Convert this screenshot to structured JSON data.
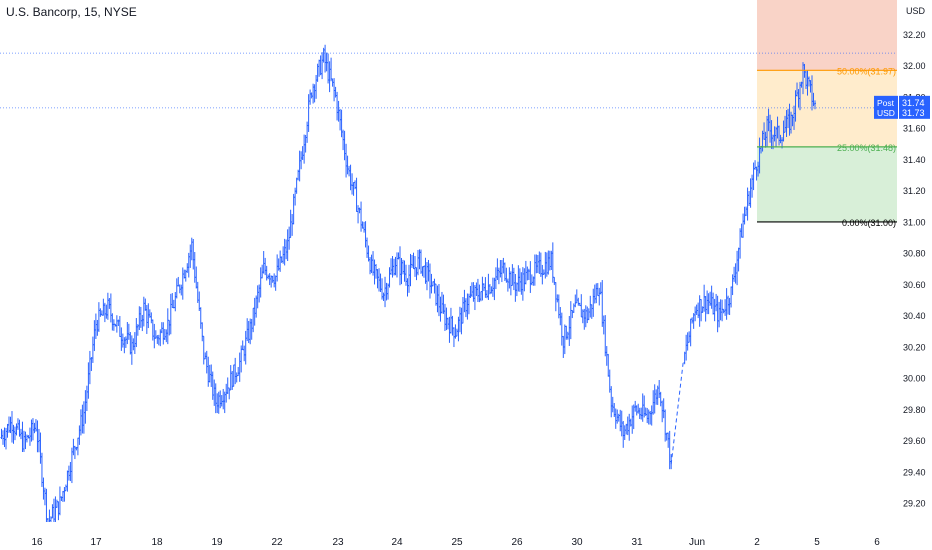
{
  "header": {
    "title": "U.S. Bancorp, 15, NYSE"
  },
  "chart_data": {
    "type": "ohlc",
    "title": "U.S. Bancorp, 15, NYSE",
    "y_axis": {
      "label": "USD",
      "ticks": [
        29.2,
        29.4,
        29.6,
        29.8,
        30.0,
        30.2,
        30.4,
        30.6,
        30.8,
        31.0,
        31.2,
        31.4,
        31.6,
        31.8,
        32.0,
        32.2
      ],
      "tick_labels": [
        "29.20",
        "29.40",
        "29.60",
        "29.80",
        "30.00",
        "30.20",
        "30.40",
        "30.60",
        "30.80",
        "31.00",
        "31.20",
        "31.40",
        "31.60",
        "31.80",
        "32.00",
        "32.20"
      ],
      "range": [
        29.08,
        32.42
      ]
    },
    "x_axis": {
      "labels": [
        "16",
        "17",
        "18",
        "19",
        "22",
        "23",
        "24",
        "25",
        "26",
        "30",
        "31",
        "Jun",
        "2",
        "5",
        "6"
      ]
    },
    "price_path": [
      [
        0,
        29.62
      ],
      [
        1,
        29.72
      ],
      [
        2,
        29.58
      ],
      [
        3,
        29.7
      ],
      [
        4,
        29.08
      ],
      [
        5,
        29.2
      ],
      [
        6,
        29.5
      ],
      [
        7,
        29.78
      ],
      [
        8,
        30.35
      ],
      [
        9,
        30.45
      ],
      [
        10,
        30.3
      ],
      [
        11,
        30.2
      ],
      [
        12,
        30.45
      ],
      [
        13,
        30.25
      ],
      [
        14,
        30.35
      ],
      [
        15,
        30.6
      ],
      [
        16,
        30.85
      ],
      [
        17,
        30.15
      ],
      [
        18,
        29.85
      ],
      [
        19,
        29.95
      ],
      [
        20,
        30.1
      ],
      [
        21,
        30.35
      ],
      [
        22,
        30.7
      ],
      [
        23,
        30.65
      ],
      [
        24,
        30.85
      ],
      [
        25,
        31.35
      ],
      [
        26,
        31.85
      ],
      [
        27,
        32.05
      ],
      [
        28,
        31.8
      ],
      [
        29,
        31.35
      ],
      [
        30,
        31.05
      ],
      [
        31,
        30.7
      ],
      [
        32,
        30.55
      ],
      [
        33,
        30.75
      ],
      [
        34,
        30.65
      ],
      [
        35,
        30.75
      ],
      [
        36,
        30.6
      ],
      [
        37,
        30.4
      ],
      [
        38,
        30.3
      ],
      [
        39,
        30.5
      ],
      [
        40,
        30.55
      ],
      [
        41,
        30.6
      ],
      [
        42,
        30.7
      ],
      [
        43,
        30.6
      ],
      [
        44,
        30.65
      ],
      [
        45,
        30.7
      ],
      [
        46,
        30.75
      ],
      [
        47,
        30.25
      ],
      [
        48,
        30.45
      ],
      [
        49,
        30.4
      ],
      [
        50,
        30.6
      ],
      [
        51,
        29.85
      ],
      [
        52,
        29.65
      ],
      [
        53,
        29.8
      ],
      [
        54,
        29.75
      ],
      [
        55,
        29.95
      ],
      [
        56,
        29.45
      ],
      [
        57,
        30.1
      ],
      [
        58,
        30.45
      ],
      [
        59,
        30.5
      ],
      [
        60,
        30.4
      ],
      [
        61,
        30.55
      ],
      [
        62,
        31.0
      ],
      [
        63,
        31.35
      ],
      [
        64,
        31.6
      ],
      [
        65,
        31.55
      ],
      [
        66,
        31.65
      ],
      [
        67,
        31.97
      ],
      [
        68,
        31.74
      ]
    ],
    "price_path_x_units": "bar index (15-minute bars, compressed)",
    "last_price": {
      "session_label": "Post",
      "currency_label": "USD",
      "post_price": "31.74",
      "price": "31.73"
    },
    "reference_line": 32.08,
    "fibonacci": {
      "levels": [
        {
          "ratio": "0.00%",
          "price": 31.0,
          "label": "0.00%(31.00)",
          "color": "#000000"
        },
        {
          "ratio": "25.00%",
          "price": 31.48,
          "label": "25.00%(31.48)",
          "color": "#4caf50"
        },
        {
          "ratio": "50.00%",
          "price": 31.97,
          "label": "50.00%(31.97)",
          "color": "#ff9800"
        }
      ],
      "zone_colors": [
        "#d8efd8",
        "#ffeccc",
        "#f9d3c7"
      ]
    },
    "colors": {
      "series": "#2962ff",
      "axis_text": "#131722",
      "price_label_bg": "#2962ff"
    },
    "grid": false
  }
}
